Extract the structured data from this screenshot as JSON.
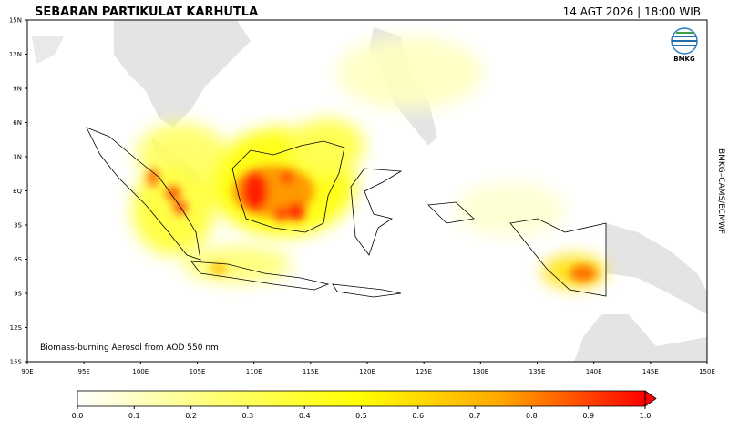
{
  "header": {
    "title": "SEBARAN PARTIKULAT KARHUTLA",
    "datetime": "14 AGT 2026 | 18:00 WIB"
  },
  "logo": {
    "label": "BMKG"
  },
  "source": "BMKG–CAMS/ECMWF",
  "map": {
    "note": "Biomass-burning Aerosol from AOD 550 nm",
    "xlim": [
      90,
      150
    ],
    "ylim": [
      -15,
      15
    ],
    "xticks": [
      {
        "value": 90,
        "label": "90E"
      },
      {
        "value": 95,
        "label": "95E"
      },
      {
        "value": 100,
        "label": "100E"
      },
      {
        "value": 105,
        "label": "105E"
      },
      {
        "value": 110,
        "label": "110E"
      },
      {
        "value": 115,
        "label": "115E"
      },
      {
        "value": 120,
        "label": "120E"
      },
      {
        "value": 125,
        "label": "125E"
      },
      {
        "value": 130,
        "label": "130E"
      },
      {
        "value": 135,
        "label": "135E"
      },
      {
        "value": 140,
        "label": "140E"
      },
      {
        "value": 145,
        "label": "145E"
      },
      {
        "value": 150,
        "label": "150E"
      }
    ],
    "yticks": [
      {
        "value": -15,
        "label": "15S"
      },
      {
        "value": -12,
        "label": "12S"
      },
      {
        "value": -9,
        "label": "9S"
      },
      {
        "value": -6,
        "label": "6S"
      },
      {
        "value": -3,
        "label": "3S"
      },
      {
        "value": 0,
        "label": "EQ"
      },
      {
        "value": 3,
        "label": "3N"
      },
      {
        "value": 6,
        "label": "6N"
      },
      {
        "value": 9,
        "label": "9N"
      },
      {
        "value": 12,
        "label": "12N"
      },
      {
        "value": 15,
        "label": "15N"
      }
    ]
  },
  "colorbar": {
    "lim": [
      0,
      1
    ],
    "ticks": [
      {
        "value": 0,
        "label": "0.0"
      },
      0.1,
      0.2,
      0.3,
      0.4,
      0.5,
      0.6,
      0.7,
      0.8,
      0.9,
      {
        "value": 1,
        "label": "1.0"
      }
    ],
    "colors": [
      "#ffffff",
      "#ffff70",
      "#ffff00",
      "#ffa500",
      "#ff0000"
    ]
  }
}
